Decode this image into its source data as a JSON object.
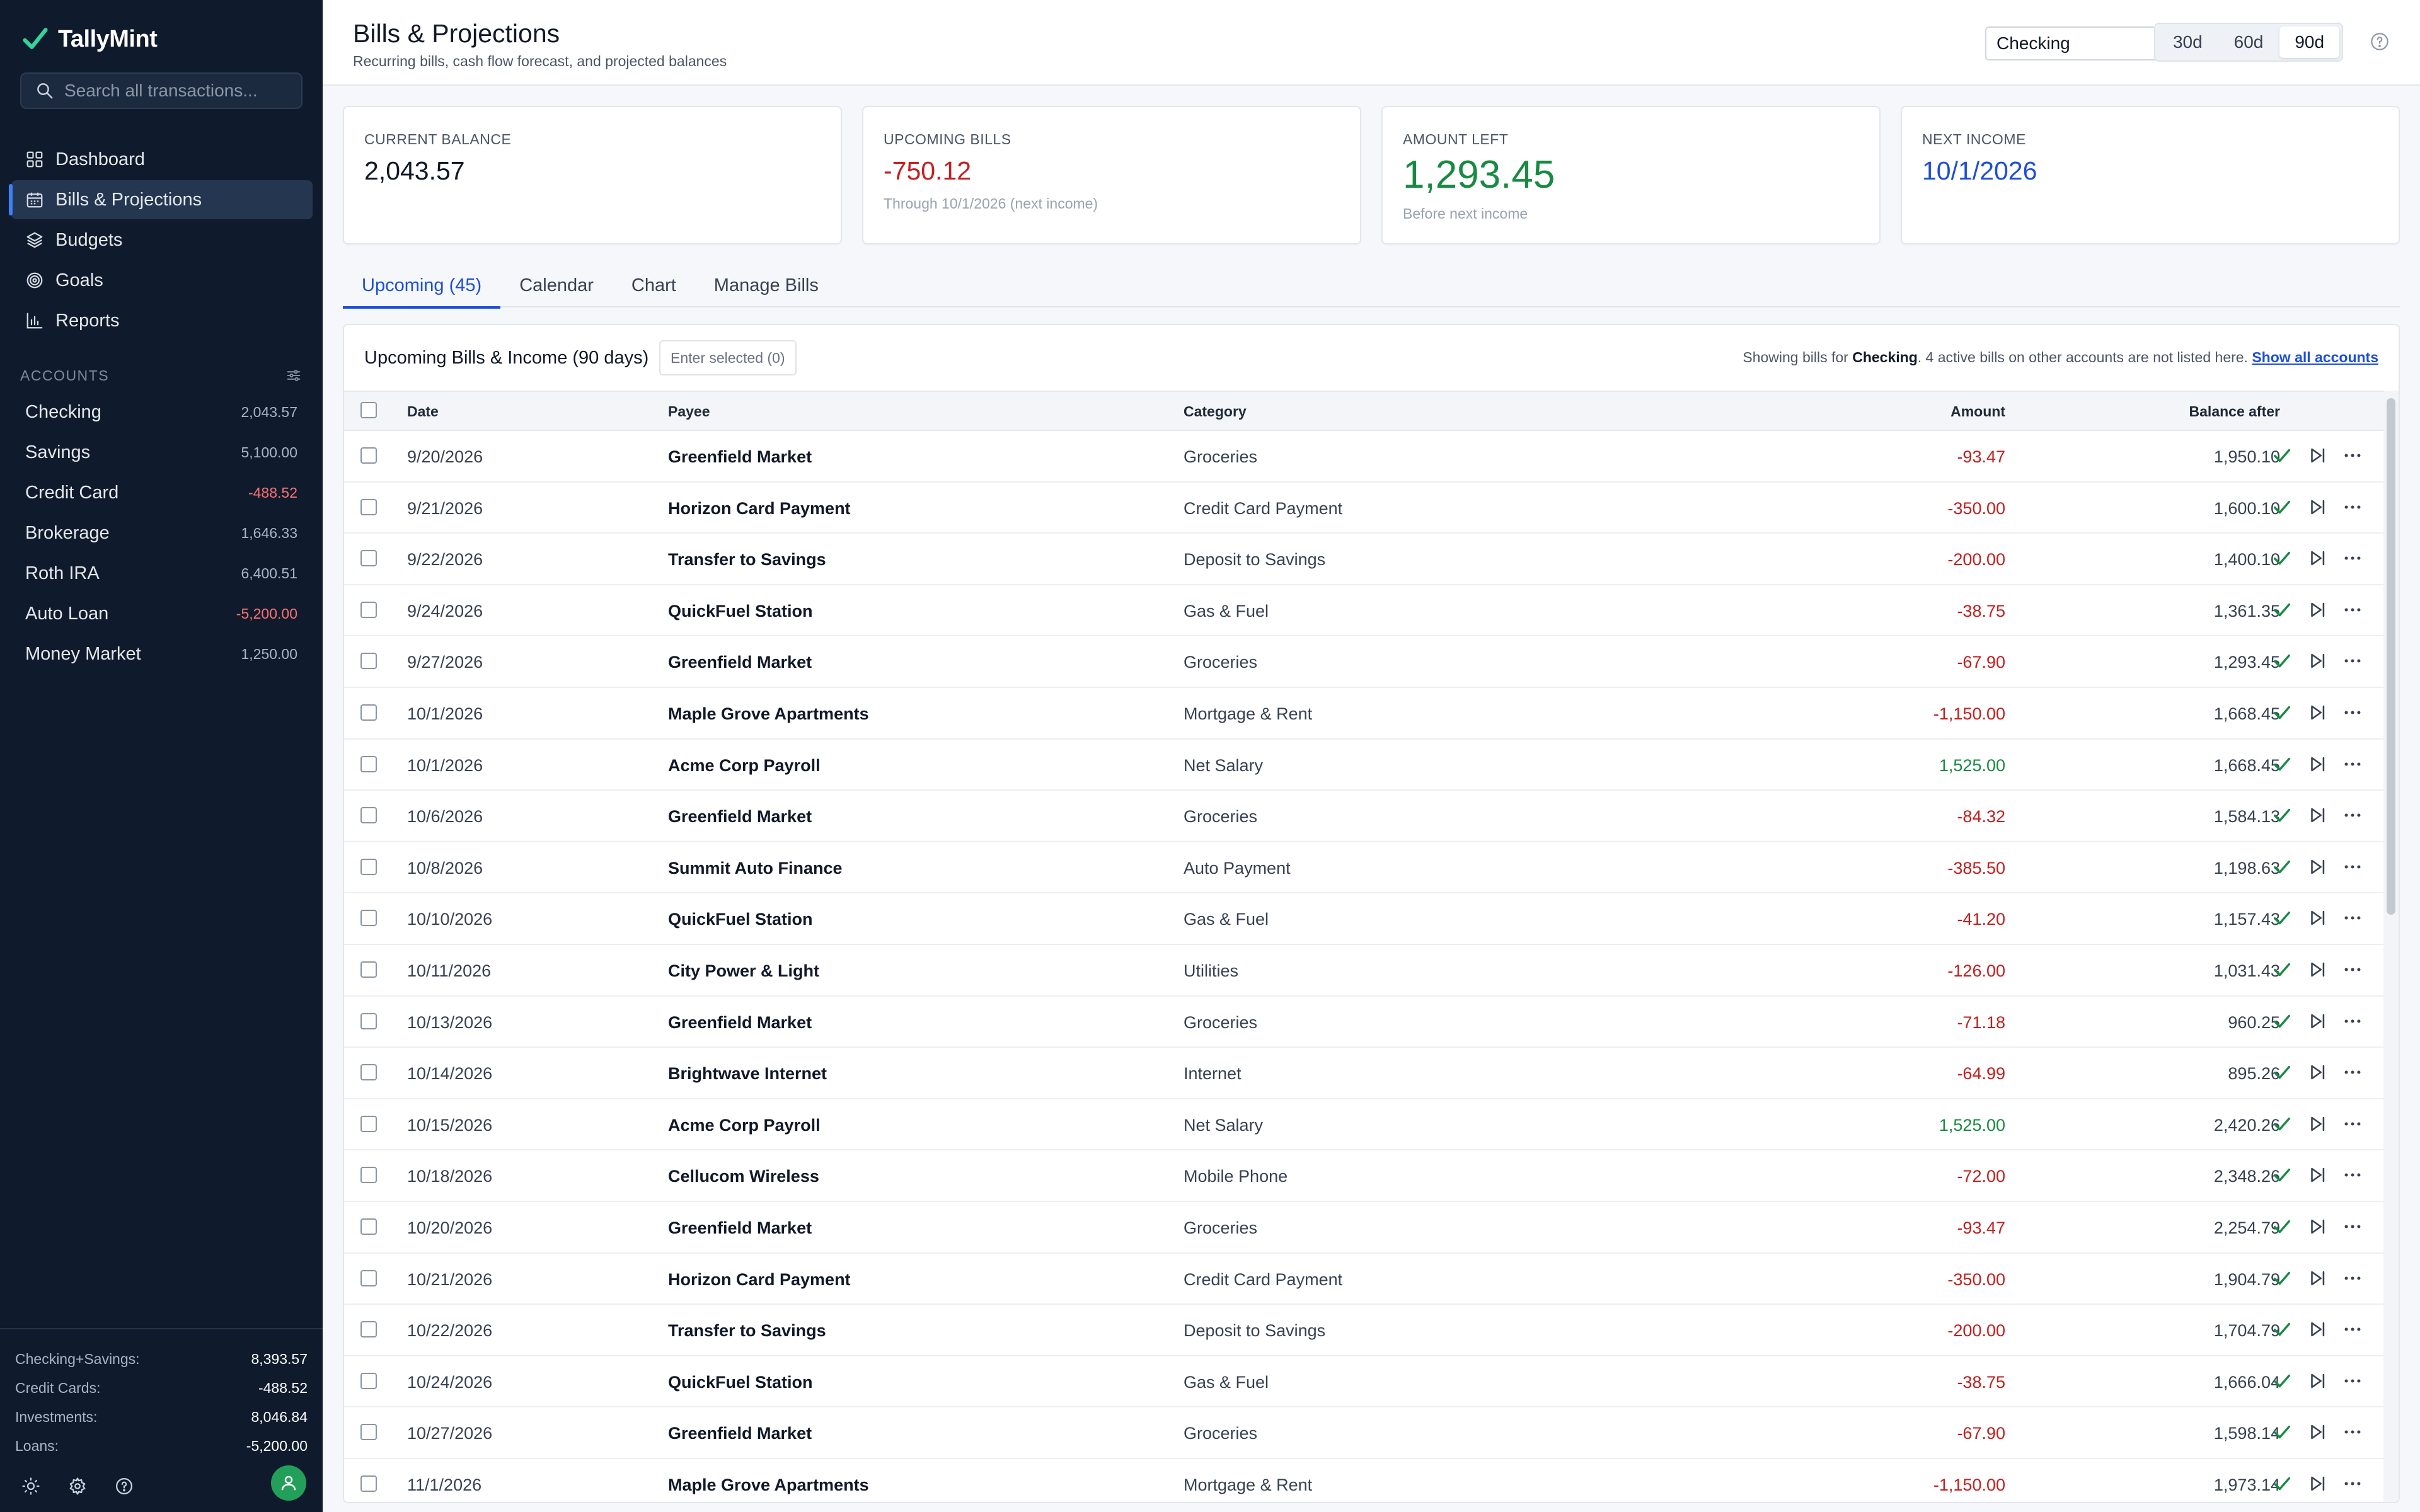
{
  "app": {
    "name": "TallyMint"
  },
  "search": {
    "placeholder": "Search all transactions..."
  },
  "nav": [
    {
      "label": "Dashboard",
      "icon": "dashboard-icon"
    },
    {
      "label": "Bills & Projections",
      "icon": "calendar-icon",
      "active": true
    },
    {
      "label": "Budgets",
      "icon": "layers-icon"
    },
    {
      "label": "Goals",
      "icon": "target-icon"
    },
    {
      "label": "Reports",
      "icon": "bar-chart-icon"
    }
  ],
  "accounts_header": "ACCOUNTS",
  "accounts": [
    {
      "name": "Checking",
      "balance": "2,043.57"
    },
    {
      "name": "Savings",
      "balance": "5,100.00"
    },
    {
      "name": "Credit Card",
      "balance": "-488.52"
    },
    {
      "name": "Brokerage",
      "balance": "1,646.33"
    },
    {
      "name": "Roth IRA",
      "balance": "6,400.51"
    },
    {
      "name": "Auto Loan",
      "balance": "-5,200.00"
    },
    {
      "name": "Money Market",
      "balance": "1,250.00"
    }
  ],
  "totals": [
    {
      "label": "Checking+Savings:",
      "value": "8,393.57"
    },
    {
      "label": "Credit Cards:",
      "value": "-488.52"
    },
    {
      "label": "Investments:",
      "value": "8,046.84"
    },
    {
      "label": "Loans:",
      "value": "-5,200.00"
    }
  ],
  "header": {
    "title": "Bills & Projections",
    "subtitle": "Recurring bills, cash flow forecast, and projected balances",
    "account_select": "Checking",
    "ranges": [
      "30d",
      "60d",
      "90d"
    ],
    "active_range": "90d"
  },
  "cards": {
    "current_balance": {
      "label": "CURRENT BALANCE",
      "value": "2,043.57"
    },
    "upcoming_bills": {
      "label": "UPCOMING BILLS",
      "value": "-750.12",
      "sub": "Through 10/1/2026 (next income)"
    },
    "amount_left": {
      "label": "AMOUNT LEFT",
      "value": "1,293.45",
      "sub": "Before next income"
    },
    "next_income": {
      "label": "NEXT INCOME",
      "value": "10/1/2026"
    }
  },
  "tabs": [
    "Upcoming (45)",
    "Calendar",
    "Chart",
    "Manage Bills"
  ],
  "panel": {
    "title": "Upcoming Bills & Income (90 days)",
    "enter_selected": "Enter selected (0)",
    "note_prefix": "Showing bills for ",
    "note_account": "Checking",
    "note_suffix": ". 4 active bills on other accounts are not listed here. ",
    "note_link": "Show all accounts"
  },
  "columns": {
    "date": "Date",
    "payee": "Payee",
    "category": "Category",
    "amount": "Amount",
    "balance": "Balance after"
  },
  "rows": [
    {
      "date": "9/20/2026",
      "payee": "Greenfield Market",
      "category": "Groceries",
      "amount": "-93.47",
      "balance": "1,950.10"
    },
    {
      "date": "9/21/2026",
      "payee": "Horizon Card Payment",
      "category": "Credit Card Payment",
      "amount": "-350.00",
      "balance": "1,600.10"
    },
    {
      "date": "9/22/2026",
      "payee": "Transfer to Savings",
      "category": "Deposit to Savings",
      "amount": "-200.00",
      "balance": "1,400.10"
    },
    {
      "date": "9/24/2026",
      "payee": "QuickFuel Station",
      "category": "Gas & Fuel",
      "amount": "-38.75",
      "balance": "1,361.35"
    },
    {
      "date": "9/27/2026",
      "payee": "Greenfield Market",
      "category": "Groceries",
      "amount": "-67.90",
      "balance": "1,293.45"
    },
    {
      "date": "10/1/2026",
      "payee": "Maple Grove Apartments",
      "category": "Mortgage & Rent",
      "amount": "-1,150.00",
      "balance": "1,668.45"
    },
    {
      "date": "10/1/2026",
      "payee": "Acme Corp Payroll",
      "category": "Net Salary",
      "amount": "1,525.00",
      "balance": "1,668.45"
    },
    {
      "date": "10/6/2026",
      "payee": "Greenfield Market",
      "category": "Groceries",
      "amount": "-84.32",
      "balance": "1,584.13"
    },
    {
      "date": "10/8/2026",
      "payee": "Summit Auto Finance",
      "category": "Auto Payment",
      "amount": "-385.50",
      "balance": "1,198.63"
    },
    {
      "date": "10/10/2026",
      "payee": "QuickFuel Station",
      "category": "Gas & Fuel",
      "amount": "-41.20",
      "balance": "1,157.43"
    },
    {
      "date": "10/11/2026",
      "payee": "City Power & Light",
      "category": "Utilities",
      "amount": "-126.00",
      "balance": "1,031.43"
    },
    {
      "date": "10/13/2026",
      "payee": "Greenfield Market",
      "category": "Groceries",
      "amount": "-71.18",
      "balance": "960.25"
    },
    {
      "date": "10/14/2026",
      "payee": "Brightwave Internet",
      "category": "Internet",
      "amount": "-64.99",
      "balance": "895.26"
    },
    {
      "date": "10/15/2026",
      "payee": "Acme Corp Payroll",
      "category": "Net Salary",
      "amount": "1,525.00",
      "balance": "2,420.26"
    },
    {
      "date": "10/18/2026",
      "payee": "Cellucom Wireless",
      "category": "Mobile Phone",
      "amount": "-72.00",
      "balance": "2,348.26"
    },
    {
      "date": "10/20/2026",
      "payee": "Greenfield Market",
      "category": "Groceries",
      "amount": "-93.47",
      "balance": "2,254.79"
    },
    {
      "date": "10/21/2026",
      "payee": "Horizon Card Payment",
      "category": "Credit Card Payment",
      "amount": "-350.00",
      "balance": "1,904.79"
    },
    {
      "date": "10/22/2026",
      "payee": "Transfer to Savings",
      "category": "Deposit to Savings",
      "amount": "-200.00",
      "balance": "1,704.79"
    },
    {
      "date": "10/24/2026",
      "payee": "QuickFuel Station",
      "category": "Gas & Fuel",
      "amount": "-38.75",
      "balance": "1,666.04"
    },
    {
      "date": "10/27/2026",
      "payee": "Greenfield Market",
      "category": "Groceries",
      "amount": "-67.90",
      "balance": "1,598.14"
    },
    {
      "date": "11/1/2026",
      "payee": "Maple Grove Apartments",
      "category": "Mortgage & Rent",
      "amount": "-1,150.00",
      "balance": "1,973.14"
    }
  ],
  "colors": {
    "accent": "#1d4ed8",
    "negative": "#c41e1e",
    "positive": "#188a42",
    "sidebar": "#0f1b2d",
    "brand": "#34d399"
  }
}
